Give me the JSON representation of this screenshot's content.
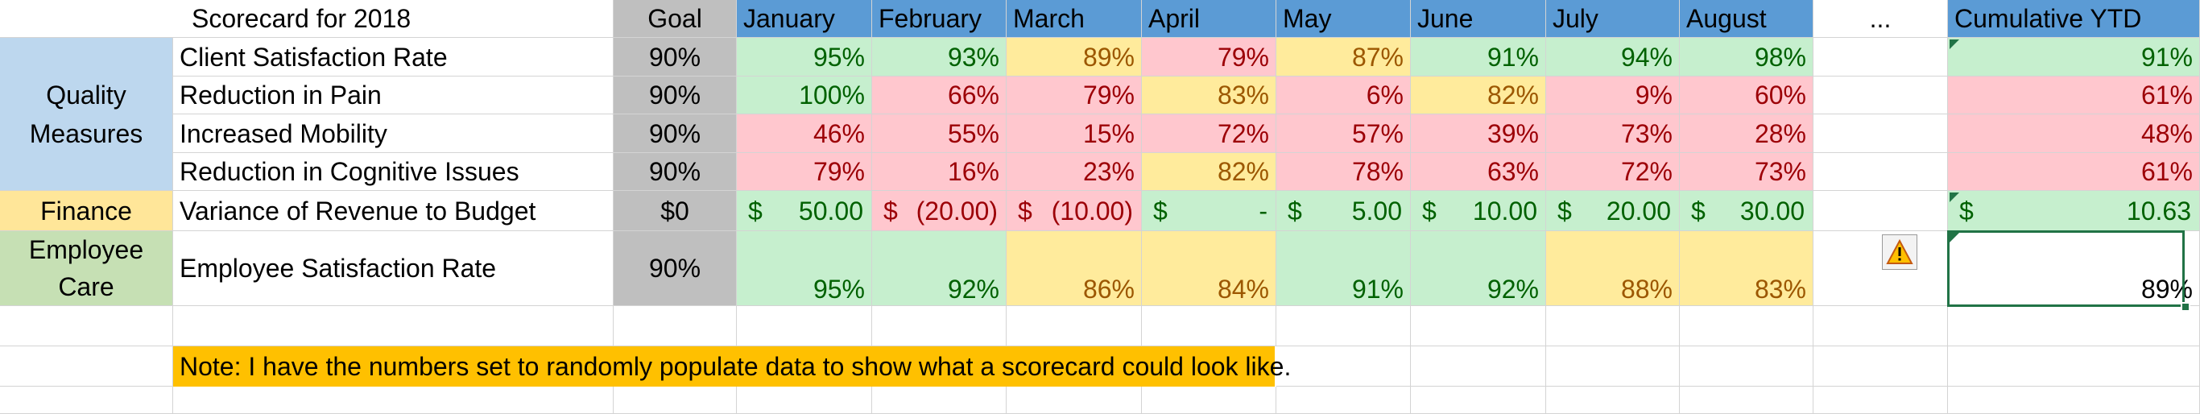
{
  "sheet": {
    "title": "Scorecard for 2018",
    "goal_header": "Goal",
    "months": [
      "January",
      "February",
      "March",
      "April",
      "May",
      "June",
      "July",
      "August"
    ],
    "ellipsis": "...",
    "ytd_header": "Cumulative YTD"
  },
  "categories": {
    "quality": "Quality Measures",
    "finance": "Finance",
    "employee": "Employee Care"
  },
  "rows": [
    {
      "metric": "Client Satisfaction Rate",
      "goal": "90%",
      "values": [
        "95%",
        "93%",
        "89%",
        "79%",
        "87%",
        "91%",
        "94%",
        "98%"
      ],
      "status": [
        "g",
        "g",
        "y",
        "r",
        "y",
        "g",
        "g",
        "g"
      ],
      "ytd": "91%",
      "ytd_status": "g"
    },
    {
      "metric": "Reduction in Pain",
      "goal": "90%",
      "values": [
        "100%",
        "66%",
        "79%",
        "83%",
        "6%",
        "82%",
        "9%",
        "60%"
      ],
      "status": [
        "g",
        "r",
        "r",
        "y",
        "r",
        "y",
        "r",
        "r"
      ],
      "ytd": "61%",
      "ytd_status": "r"
    },
    {
      "metric": "Increased Mobility",
      "goal": "90%",
      "values": [
        "46%",
        "55%",
        "15%",
        "72%",
        "57%",
        "39%",
        "73%",
        "28%"
      ],
      "status": [
        "r",
        "r",
        "r",
        "r",
        "r",
        "r",
        "r",
        "r"
      ],
      "ytd": "48%",
      "ytd_status": "r"
    },
    {
      "metric": "Reduction in Cognitive Issues",
      "goal": "90%",
      "values": [
        "79%",
        "16%",
        "23%",
        "82%",
        "78%",
        "63%",
        "72%",
        "73%"
      ],
      "status": [
        "r",
        "r",
        "r",
        "y",
        "r",
        "r",
        "r",
        "r"
      ],
      "ytd": "61%",
      "ytd_status": "r"
    }
  ],
  "finance_row": {
    "metric": "Variance of Revenue to Budget",
    "goal": "$0",
    "currency": "$",
    "values": [
      "50.00",
      "(20.00)",
      "(10.00)",
      "-",
      "5.00",
      "10.00",
      "20.00",
      "30.00"
    ],
    "status": [
      "g",
      "r",
      "r",
      "g",
      "g",
      "g",
      "g",
      "g"
    ],
    "ytd": "10.63"
  },
  "employee_row": {
    "metric": "Employee Satisfaction Rate",
    "goal": "90%",
    "values": [
      "95%",
      "92%",
      "86%",
      "84%",
      "91%",
      "92%",
      "88%",
      "83%"
    ],
    "status": [
      "g",
      "g",
      "y",
      "y",
      "g",
      "g",
      "y",
      "y"
    ],
    "ytd": "89%"
  },
  "note": "Note: I have the numbers set to randomly populate data to show what a scorecard could look like.",
  "icons": {
    "warning": "warning-triangle-icon",
    "error_indicator": "green-triangle-indicator"
  }
}
